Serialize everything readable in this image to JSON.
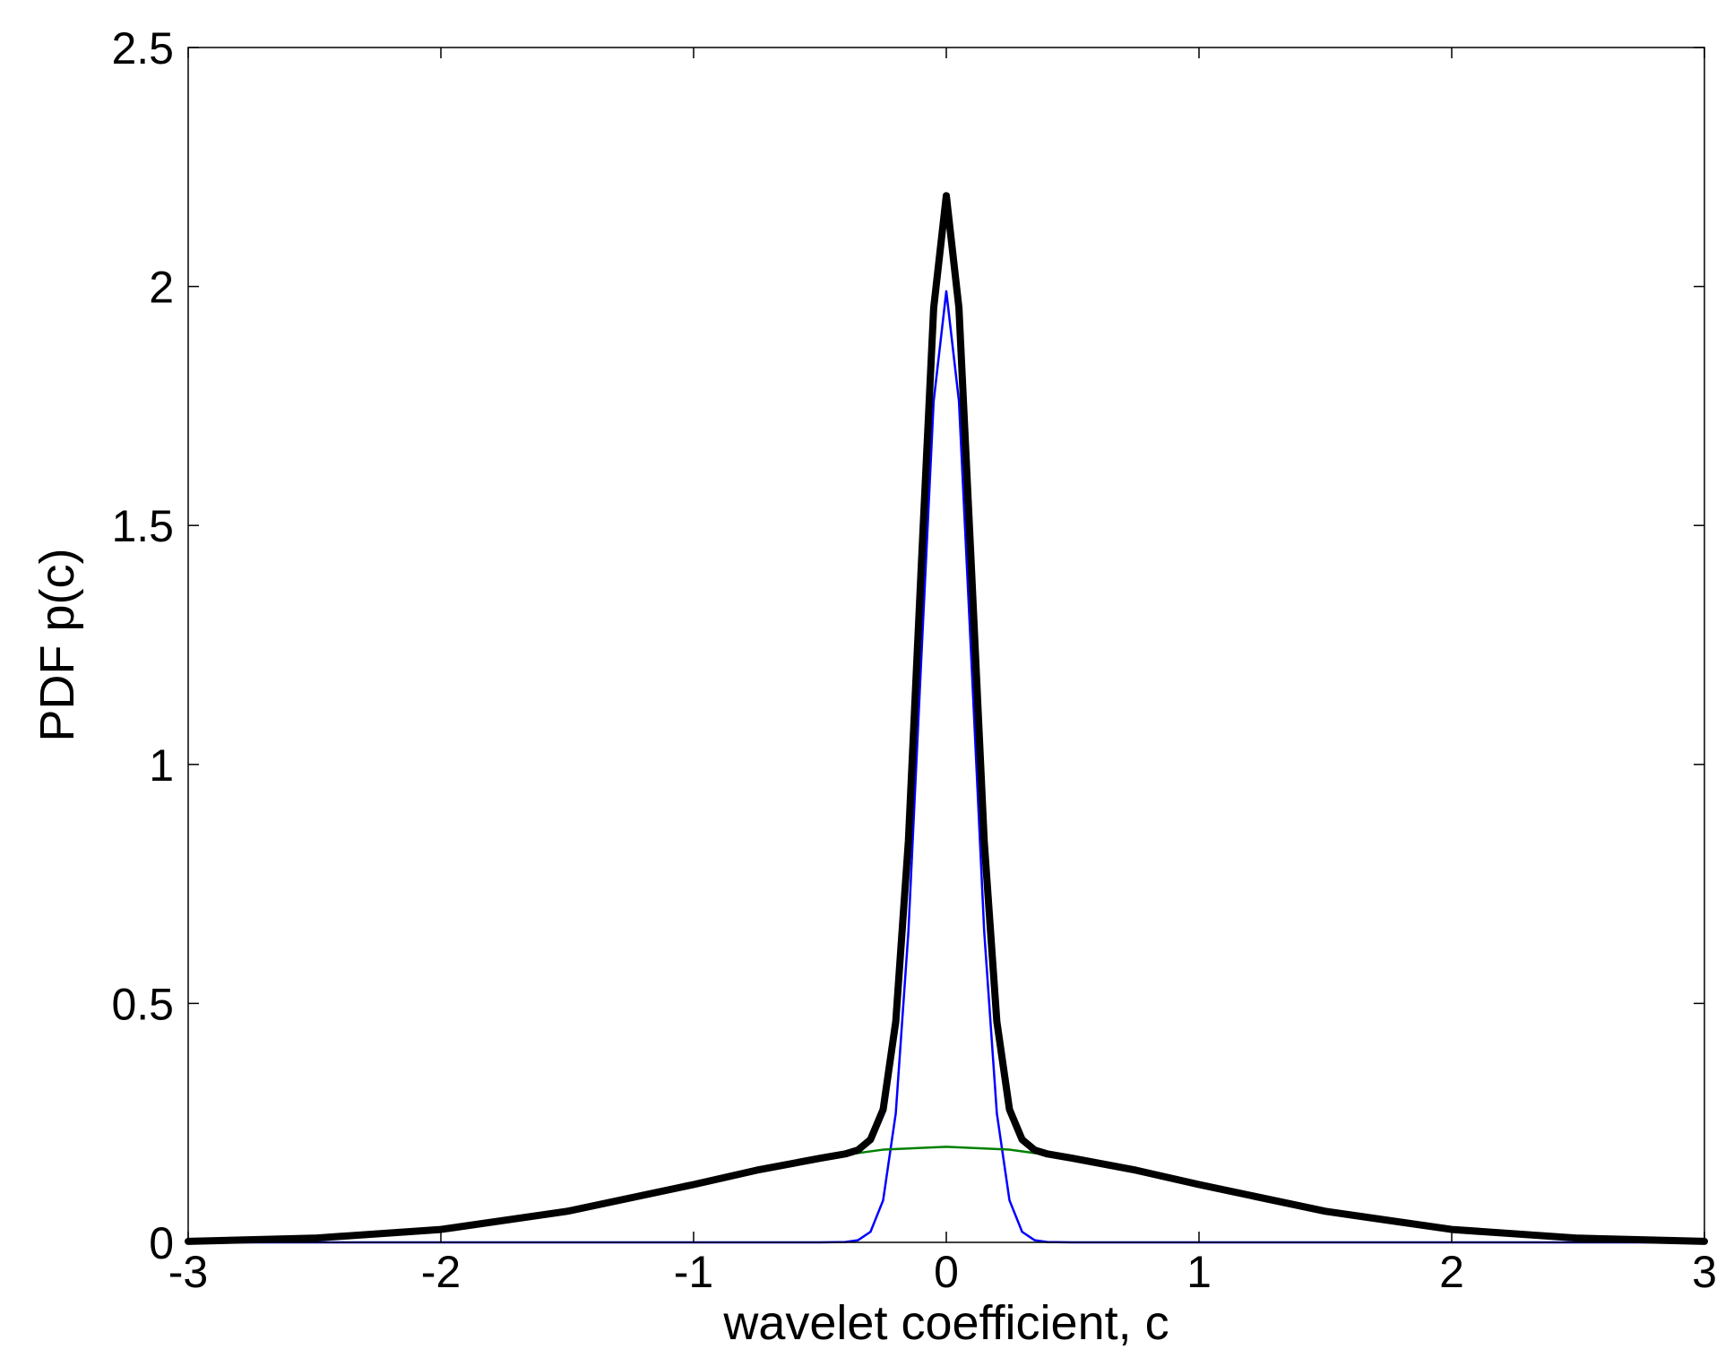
{
  "chart_data": {
    "type": "line",
    "title": "",
    "xlabel": "wavelet coefficient, c",
    "ylabel": "PDF p(c)",
    "xlim": [
      -3,
      3
    ],
    "ylim": [
      0,
      2.5
    ],
    "xticks": [
      -3,
      -2,
      -1,
      0,
      1,
      2,
      3
    ],
    "xtick_labels": [
      "-3",
      "-2",
      "-1",
      "0",
      "1",
      "2",
      "3"
    ],
    "yticks": [
      0,
      0.5,
      1,
      1.5,
      2,
      2.5
    ],
    "ytick_labels": [
      "0",
      "0.5",
      "1",
      "1.5",
      "2",
      "2.5"
    ],
    "grid": false,
    "legend": "none",
    "series": [
      {
        "color": "#0000ff",
        "line_weight": "thin",
        "x": [
          -3,
          -2,
          -1,
          -0.5,
          -0.4,
          -0.35,
          -0.3,
          -0.25,
          -0.2,
          -0.15,
          -0.1,
          -0.05,
          0,
          0.05,
          0.1,
          0.15,
          0.2,
          0.25,
          0.3,
          0.35,
          0.4,
          0.5,
          1,
          2,
          3
        ],
        "y": [
          0,
          0,
          0,
          0,
          0.0007,
          0.0044,
          0.022,
          0.088,
          0.27,
          0.65,
          1.21,
          1.76,
          1.99,
          1.76,
          1.21,
          0.65,
          0.27,
          0.088,
          0.022,
          0.0044,
          0.0007,
          0,
          0,
          0,
          0
        ]
      },
      {
        "color": "#008000",
        "line_weight": "thin",
        "x": [
          -3,
          -2.5,
          -2,
          -1.5,
          -1,
          -0.75,
          -0.5,
          -0.25,
          0,
          0.25,
          0.5,
          0.75,
          1,
          1.5,
          2,
          2.5,
          3
        ],
        "y": [
          0.0022,
          0.0088,
          0.027,
          0.065,
          0.121,
          0.151,
          0.176,
          0.194,
          0.2,
          0.194,
          0.176,
          0.151,
          0.121,
          0.065,
          0.027,
          0.0088,
          0.0022
        ]
      },
      {
        "color": "#000000",
        "line_weight": "thick",
        "x": [
          -3,
          -2.5,
          -2,
          -1.5,
          -1,
          -0.75,
          -0.5,
          -0.4,
          -0.35,
          -0.3,
          -0.25,
          -0.2,
          -0.15,
          -0.1,
          -0.05,
          0,
          0.05,
          0.1,
          0.15,
          0.2,
          0.25,
          0.3,
          0.35,
          0.4,
          0.5,
          0.75,
          1,
          1.5,
          2,
          2.5,
          3
        ],
        "y": [
          0.0022,
          0.0088,
          0.027,
          0.065,
          0.121,
          0.151,
          0.176,
          0.185,
          0.193,
          0.215,
          0.278,
          0.462,
          0.84,
          1.404,
          1.955,
          2.19,
          1.955,
          1.404,
          0.84,
          0.462,
          0.278,
          0.215,
          0.193,
          0.185,
          0.176,
          0.151,
          0.121,
          0.065,
          0.027,
          0.0088,
          0.0022
        ]
      }
    ]
  }
}
